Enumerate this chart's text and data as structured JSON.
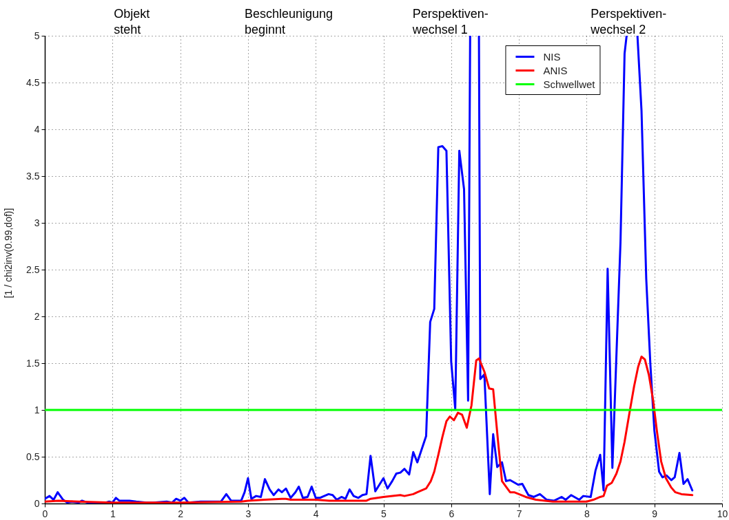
{
  "chart_data": {
    "type": "line",
    "ylabel": "[1 / chi2inv(0.99,dof)]",
    "xlim": [
      0,
      10
    ],
    "xticks": [
      0,
      1,
      2,
      3,
      4,
      5,
      6,
      7,
      8,
      9,
      10
    ],
    "ylim": [
      0,
      5
    ],
    "yticks": [
      0,
      0.5,
      1,
      1.5,
      2,
      2.5,
      3,
      3.5,
      4,
      4.5,
      5
    ],
    "grid": true,
    "legend": "top right",
    "line_style": "solid",
    "annotations": [
      "Objekt\nsteht",
      "Beschleunigung\nbeginnt",
      "Perspektiven-\nwechsel 1",
      "Perspektiven-\nwechsel 2"
    ],
    "series": [
      {
        "name": "NIS",
        "color": "#0000ff",
        "x": [
          0,
          0.07,
          0.13,
          0.19,
          0.27,
          0.33,
          0.4,
          0.5,
          0.55,
          0.63,
          0.8,
          0.9,
          0.95,
          1,
          1.05,
          1.1,
          1.25,
          1.35,
          1.5,
          1.6,
          1.8,
          1.88,
          1.94,
          2,
          2.06,
          2.12,
          2.3,
          2.5,
          2.6,
          2.68,
          2.75,
          2.9,
          2.95,
          3,
          3.05,
          3.12,
          3.19,
          3.25,
          3.32,
          3.38,
          3.45,
          3.5,
          3.56,
          3.63,
          3.7,
          3.75,
          3.81,
          3.88,
          3.94,
          4,
          4.06,
          4.19,
          4.25,
          4.31,
          4.38,
          4.44,
          4.5,
          4.56,
          4.63,
          4.69,
          4.75,
          4.81,
          4.88,
          4.94,
          5,
          5.06,
          5.13,
          5.19,
          5.25,
          5.31,
          5.38,
          5.44,
          5.5,
          5.63,
          5.69,
          5.75,
          5.81,
          5.87,
          5.93,
          6,
          6.06,
          6.12,
          6.19,
          6.25,
          6.28,
          6.35,
          6.41,
          6.43,
          6.49,
          6.57,
          6.62,
          6.68,
          6.75,
          6.81,
          6.87,
          6.99,
          7.05,
          7.14,
          7.22,
          7.31,
          7.41,
          7.52,
          7.63,
          7.69,
          7.77,
          7.89,
          7.95,
          8.06,
          8.13,
          8.2,
          8.25,
          8.31,
          8.38,
          8.5,
          8.56,
          8.59,
          8.67,
          8.75,
          8.81,
          8.88,
          8.94,
          9,
          9.07,
          9.12,
          9.18,
          9.25,
          9.3,
          9.37,
          9.43,
          9.49,
          9.56
        ],
        "values": [
          0.05,
          0.08,
          0.04,
          0.12,
          0.04,
          0.01,
          0.02,
          0.01,
          0.03,
          0.01,
          0.01,
          0.01,
          0.02,
          0.01,
          0.06,
          0.03,
          0.03,
          0.02,
          0.01,
          0.01,
          0.02,
          0.01,
          0.05,
          0.03,
          0.06,
          0.01,
          0.02,
          0.02,
          0.02,
          0.1,
          0.03,
          0.03,
          0.12,
          0.27,
          0.05,
          0.08,
          0.07,
          0.26,
          0.15,
          0.09,
          0.15,
          0.12,
          0.16,
          0.06,
          0.12,
          0.18,
          0.06,
          0.07,
          0.18,
          0.06,
          0.06,
          0.1,
          0.09,
          0.04,
          0.07,
          0.05,
          0.15,
          0.08,
          0.06,
          0.09,
          0.1,
          0.51,
          0.13,
          0.2,
          0.27,
          0.16,
          0.24,
          0.32,
          0.33,
          0.37,
          0.31,
          0.55,
          0.44,
          0.72,
          1.94,
          2.08,
          3.81,
          3.82,
          3.77,
          1.52,
          1.01,
          3.77,
          3.36,
          1.1,
          5,
          null,
          5,
          1.33,
          1.38,
          0.1,
          0.74,
          0.39,
          0.44,
          0.24,
          0.25,
          0.2,
          0.21,
          0.09,
          0.07,
          0.1,
          0.04,
          0.03,
          0.07,
          0.04,
          0.09,
          0.04,
          0.08,
          0.07,
          0.35,
          0.52,
          0.14,
          2.51,
          0.38,
          2.8,
          4.81,
          5,
          null,
          5,
          4.2,
          2.4,
          1.5,
          0.78,
          0.34,
          0.28,
          0.3,
          0.25,
          0.28,
          0.54,
          0.21,
          0.26,
          0.14
        ]
      },
      {
        "name": "ANIS",
        "color": "#ff0000",
        "x": [
          0,
          0.2,
          0.5,
          1,
          2,
          2.9,
          3,
          3.25,
          3.5,
          3.56,
          3.63,
          4,
          4.2,
          4.5,
          4.75,
          4.81,
          5,
          5.25,
          5.31,
          5.44,
          5.5,
          5.63,
          5.7,
          5.75,
          5.81,
          5.87,
          5.93,
          5.98,
          6.04,
          6.1,
          6.16,
          6.23,
          6.3,
          6.37,
          6.41,
          6.49,
          6.56,
          6.62,
          6.69,
          6.75,
          6.81,
          6.87,
          6.93,
          7,
          7.1,
          7.25,
          7.5,
          7.66,
          8,
          8.1,
          8.2,
          8.25,
          8.3,
          8.37,
          8.44,
          8.5,
          8.56,
          8.63,
          8.7,
          8.76,
          8.81,
          8.86,
          8.92,
          8.98,
          9.04,
          9.1,
          9.17,
          9.25,
          9.31,
          9.4,
          9.56
        ],
        "values": [
          0.02,
          0.03,
          0.02,
          0.01,
          0.01,
          0.02,
          0.03,
          0.04,
          0.05,
          0.05,
          0.04,
          0.04,
          0.03,
          0.03,
          0.03,
          0.05,
          0.07,
          0.09,
          0.08,
          0.1,
          0.12,
          0.16,
          0.24,
          0.34,
          0.52,
          0.71,
          0.88,
          0.93,
          0.89,
          0.97,
          0.95,
          0.81,
          1.05,
          1.53,
          1.55,
          1.41,
          1.23,
          1.22,
          0.68,
          0.24,
          0.18,
          0.12,
          0.12,
          0.1,
          0.07,
          0.04,
          0.02,
          0.02,
          0.02,
          0.04,
          0.07,
          0.08,
          0.19,
          0.22,
          0.32,
          0.45,
          0.66,
          0.96,
          1.25,
          1.46,
          1.57,
          1.54,
          1.37,
          1.11,
          0.76,
          0.45,
          0.27,
          0.17,
          0.12,
          0.1,
          0.09
        ]
      },
      {
        "name": "Schwellwet",
        "color": "#00ff00",
        "x": [
          0,
          10
        ],
        "values": [
          1,
          1
        ]
      }
    ]
  }
}
